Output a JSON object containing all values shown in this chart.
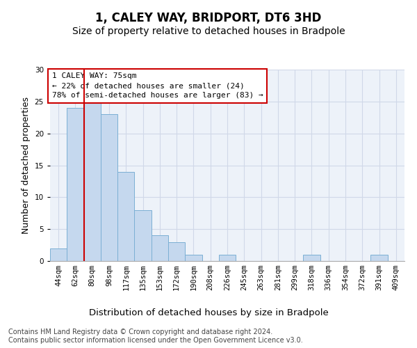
{
  "title": "1, CALEY WAY, BRIDPORT, DT6 3HD",
  "subtitle": "Size of property relative to detached houses in Bradpole",
  "xlabel": "Distribution of detached houses by size in Bradpole",
  "ylabel": "Number of detached properties",
  "categories": [
    "44sqm",
    "62sqm",
    "80sqm",
    "98sqm",
    "117sqm",
    "135sqm",
    "153sqm",
    "172sqm",
    "190sqm",
    "208sqm",
    "226sqm",
    "245sqm",
    "263sqm",
    "281sqm",
    "299sqm",
    "318sqm",
    "336sqm",
    "354sqm",
    "372sqm",
    "391sqm",
    "409sqm"
  ],
  "values": [
    2,
    24,
    25,
    23,
    14,
    8,
    4,
    3,
    1,
    0,
    1,
    0,
    0,
    0,
    0,
    1,
    0,
    0,
    0,
    1,
    0
  ],
  "bar_color": "#c5d8ee",
  "bar_edge_color": "#7bafd4",
  "annotation_box_text": "1 CALEY WAY: 75sqm\n← 22% of detached houses are smaller (24)\n78% of semi-detached houses are larger (83) →",
  "annotation_box_color": "#ffffff",
  "annotation_box_edge_color": "#cc0000",
  "vline_color": "#cc0000",
  "ylim": [
    0,
    30
  ],
  "yticks": [
    0,
    5,
    10,
    15,
    20,
    25,
    30
  ],
  "grid_color": "#d0d8e8",
  "background_color": "#edf2f9",
  "footer_text": "Contains HM Land Registry data © Crown copyright and database right 2024.\nContains public sector information licensed under the Open Government Licence v3.0.",
  "title_fontsize": 12,
  "subtitle_fontsize": 10,
  "xlabel_fontsize": 9.5,
  "ylabel_fontsize": 9,
  "tick_fontsize": 7.5,
  "ann_fontsize": 8,
  "footer_fontsize": 7
}
